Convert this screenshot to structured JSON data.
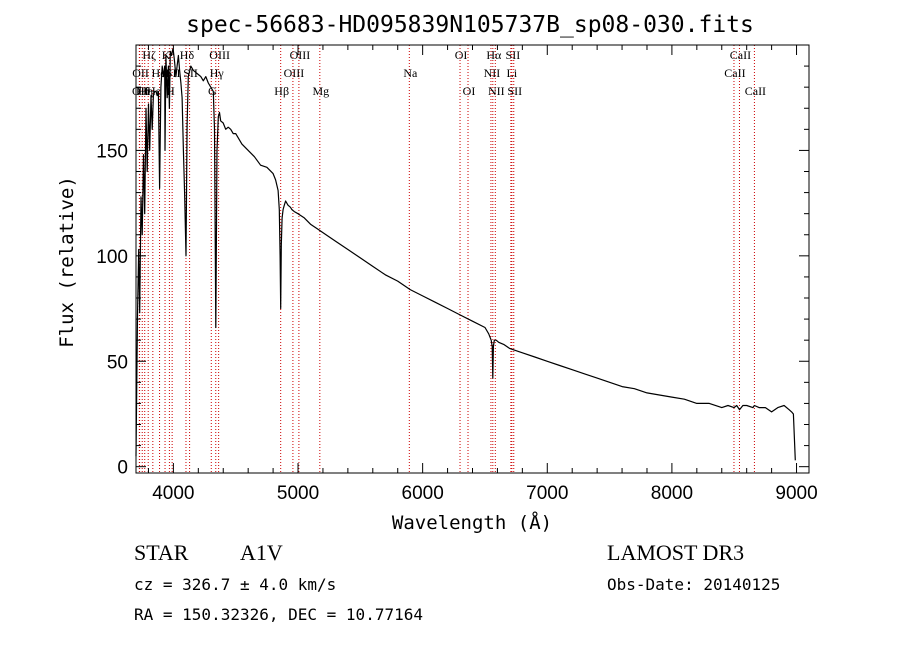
{
  "chart_data": {
    "type": "line",
    "title": "spec-56683-HD095839N105737B_sp08-030.fits",
    "xlabel": "Wavelength (Å)",
    "ylabel": "Flux (relative)",
    "xlim": [
      3700,
      9100
    ],
    "ylim": [
      -3,
      200
    ],
    "xticks": [
      4000,
      5000,
      6000,
      7000,
      8000,
      9000
    ],
    "yticks": [
      0,
      50,
      100,
      150
    ],
    "line_color": "#000000",
    "marker_color": "#cc0000",
    "series": [
      {
        "name": "spectrum",
        "x": [
          3700,
          3712,
          3722,
          3730,
          3740,
          3750,
          3760,
          3770,
          3780,
          3790,
          3800,
          3810,
          3820,
          3830,
          3840,
          3850,
          3860,
          3870,
          3880,
          3889,
          3900,
          3910,
          3920,
          3930,
          3933,
          3940,
          3950,
          3960,
          3968,
          3975,
          3985,
          3995,
          4000,
          4010,
          4020,
          4030,
          4040,
          4050,
          4060,
          4070,
          4080,
          4090,
          4101,
          4110,
          4120,
          4140,
          4160,
          4180,
          4200,
          4220,
          4240,
          4260,
          4280,
          4300,
          4320,
          4330,
          4340,
          4350,
          4360,
          4370,
          4380,
          4400,
          4420,
          4440,
          4460,
          4480,
          4500,
          4550,
          4600,
          4650,
          4700,
          4750,
          4800,
          4820,
          4840,
          4850,
          4856,
          4861,
          4866,
          4872,
          4880,
          4890,
          4900,
          4920,
          4940,
          4950,
          4970,
          5000,
          5050,
          5100,
          5150,
          5200,
          5300,
          5400,
          5500,
          5600,
          5700,
          5800,
          5900,
          6000,
          6100,
          6200,
          6300,
          6400,
          6500,
          6530,
          6550,
          6558,
          6563,
          6568,
          6575,
          6590,
          6610,
          6650,
          6700,
          6800,
          6900,
          7000,
          7100,
          7200,
          7300,
          7400,
          7500,
          7600,
          7700,
          7800,
          7900,
          8000,
          8100,
          8200,
          8300,
          8400,
          8450,
          8498,
          8520,
          8542,
          8570,
          8600,
          8650,
          8662,
          8700,
          8750,
          8800,
          8850,
          8900,
          8940,
          8960,
          8975,
          8985,
          8990
        ],
        "values": [
          5,
          72,
          103,
          73,
          128,
          110,
          148,
          120,
          170,
          140,
          172,
          150,
          176,
          160,
          176,
          178,
          178,
          176,
          178,
          132,
          180,
          190,
          185,
          190,
          150,
          195,
          175,
          190,
          170,
          197,
          195,
          198,
          197,
          192,
          185,
          190,
          195,
          188,
          182,
          175,
          150,
          130,
          100,
          162,
          185,
          190,
          188,
          187,
          186,
          185,
          183,
          185,
          182,
          180,
          178,
          160,
          66,
          150,
          166,
          168,
          164,
          163,
          160,
          161,
          160,
          158,
          158,
          153,
          150,
          147,
          143,
          142,
          139,
          136,
          131,
          122,
          100,
          75,
          105,
          118,
          122,
          124,
          126,
          124,
          123,
          122,
          121,
          120,
          118,
          115,
          113,
          111,
          107,
          103,
          99,
          95,
          91,
          88,
          84,
          81,
          78,
          75,
          72,
          69,
          66,
          63,
          60,
          57,
          42,
          57,
          60,
          60,
          59,
          58,
          56,
          54,
          52,
          50,
          48,
          46,
          44,
          42,
          40,
          38,
          37,
          35,
          34,
          33,
          32,
          30,
          30,
          28,
          29,
          28,
          29,
          27,
          29,
          29,
          28,
          29,
          28,
          28,
          26,
          28,
          29,
          27,
          26,
          25,
          10,
          3
        ]
      }
    ],
    "spectral_lines": [
      {
        "wavelength": 3727,
        "label": "OII",
        "row": 2
      },
      {
        "wavelength": 3729,
        "label": "OII",
        "row": 1
      },
      {
        "wavelength": 3750,
        "label": "Hθ",
        "row": 2
      },
      {
        "wavelength": 3770,
        "label": "Hη",
        "row": 2
      },
      {
        "wavelength": 3798,
        "label": "Hζ",
        "row": 0
      },
      {
        "wavelength": 3835,
        "label": "Hε",
        "row": 2
      },
      {
        "wavelength": 3889,
        "label": "HeI",
        "row": 1
      },
      {
        "wavelength": 3933,
        "label": "K",
        "row": 0
      },
      {
        "wavelength": 3968,
        "label": "H",
        "row": 2
      },
      {
        "wavelength": 3990,
        "label": "SII",
        "row": 1
      },
      {
        "wavelength": 4101,
        "label": "Hδ",
        "row": 0
      },
      {
        "wavelength": 4130,
        "label": "SII",
        "row": 1
      },
      {
        "wavelength": 4304,
        "label": "G",
        "row": 2
      },
      {
        "wavelength": 4340,
        "label": "Hγ",
        "row": 1
      },
      {
        "wavelength": 4363,
        "label": "OIII",
        "row": 0
      },
      {
        "wavelength": 4861,
        "label": "Hβ",
        "row": 2
      },
      {
        "wavelength": 4959,
        "label": "OIII",
        "row": 1
      },
      {
        "wavelength": 5007,
        "label": "OIII",
        "row": 0
      },
      {
        "wavelength": 5175,
        "label": "Mg",
        "row": 2
      },
      {
        "wavelength": 5893,
        "label": "Na",
        "row": 1
      },
      {
        "wavelength": 6300,
        "label": "OI",
        "row": 0
      },
      {
        "wavelength": 6364,
        "label": "OI",
        "row": 2
      },
      {
        "wavelength": 6548,
        "label": "NII",
        "row": 1
      },
      {
        "wavelength": 6563,
        "label": "Hα",
        "row": 0
      },
      {
        "wavelength": 6583,
        "label": "NII",
        "row": 2
      },
      {
        "wavelength": 6708,
        "label": "Li",
        "row": 1
      },
      {
        "wavelength": 6716,
        "label": "SII",
        "row": 0
      },
      {
        "wavelength": 6731,
        "label": "SII",
        "row": 2
      },
      {
        "wavelength": 8498,
        "label": "CaII",
        "row": 1
      },
      {
        "wavelength": 8542,
        "label": "CaII",
        "row": 0
      },
      {
        "wavelength": 8662,
        "label": "CaII",
        "row": 2
      }
    ]
  },
  "info": {
    "class_label": "STAR",
    "subclass": "A1V",
    "survey": "LAMOST DR3",
    "cz": "cz = 326.7 ± 4.0 km/s",
    "obs_date": "Obs-Date: 20140125",
    "coords": "RA = 150.32326, DEC =  10.77164"
  }
}
